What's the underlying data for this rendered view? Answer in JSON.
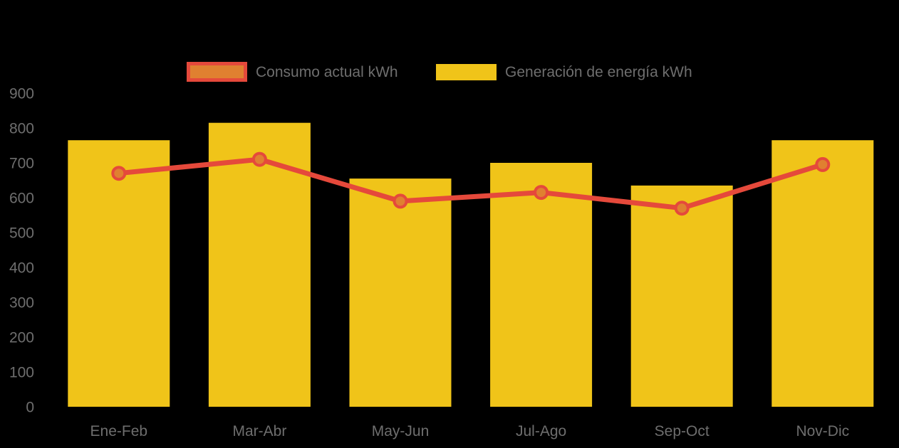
{
  "legend": {
    "items": [
      {
        "id": "consumo",
        "label": "Consumo actual kWh"
      },
      {
        "id": "generacion",
        "label": "Generación de energía kWh"
      }
    ]
  },
  "colors": {
    "bar_yellow": "#F0C419",
    "line_red": "#E5493B",
    "marker_orange": "#E08030",
    "axis_text": "#6E6E6E",
    "background": "#000000"
  },
  "chart_data": {
    "type": "bar",
    "subtype": "bar+line combo",
    "title": "",
    "xlabel": "",
    "ylabel": "",
    "categories": [
      "Ene-Feb",
      "Mar-Abr",
      "May-Jun",
      "Jul-Ago",
      "Sep-Oct",
      "Nov-Dic"
    ],
    "series": [
      {
        "name": "Consumo actual kWh",
        "type": "line",
        "color": "#E5493B",
        "marker_color": "#E08030",
        "values": [
          670,
          710,
          590,
          615,
          570,
          695
        ]
      },
      {
        "name": "Generación de energía kWh",
        "type": "bar",
        "color": "#F0C419",
        "values": [
          765,
          815,
          655,
          700,
          635,
          765
        ]
      }
    ],
    "yticks": [
      0,
      100,
      200,
      300,
      400,
      500,
      600,
      700,
      800,
      900
    ],
    "ylim": [
      0,
      900
    ],
    "grid": false,
    "legend_position": "top"
  }
}
